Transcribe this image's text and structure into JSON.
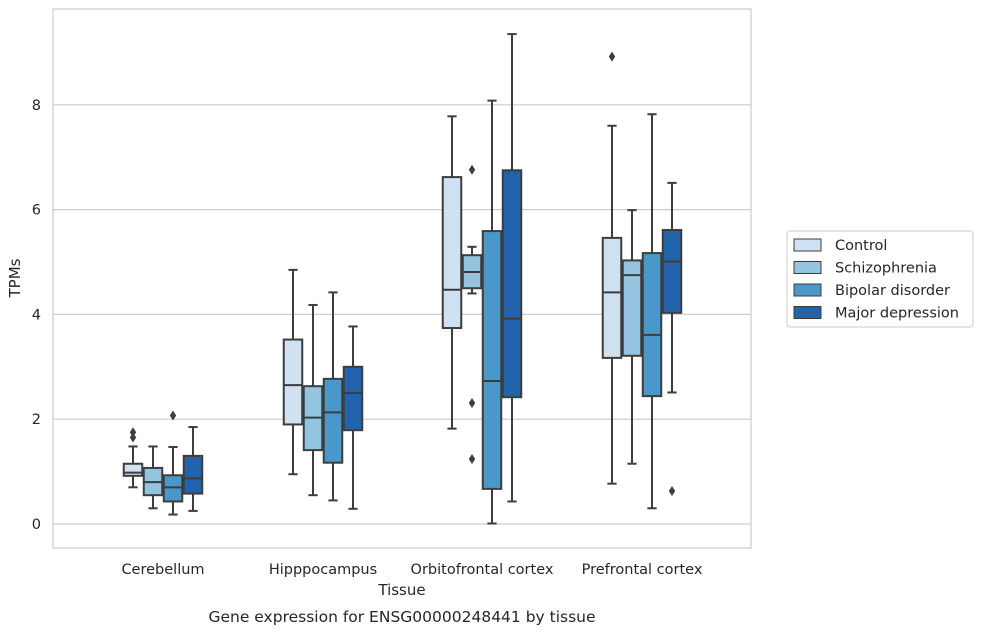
{
  "chart_data": {
    "type": "box",
    "caption": "Gene expression for ENSG00000248441 by tissue",
    "xlabel": "Tissue",
    "ylabel": "TPMs",
    "ylim": [
      -0.45,
      9.75
    ],
    "yticks": [
      0,
      2,
      4,
      6,
      8
    ],
    "grid": true,
    "legend_position": "right",
    "categories": [
      "Cerebellum",
      "Hipppocampus",
      "Orbitofrontal cortex",
      "Prefrontal cortex"
    ],
    "series": [
      {
        "name": "Control",
        "color": "#d0e1f2",
        "boxes": [
          {
            "whislo": 0.7,
            "q1": 0.92,
            "med": 0.98,
            "q3": 1.15,
            "whishi": 1.48,
            "fliers": [
              1.65,
              1.75
            ]
          },
          {
            "whislo": 0.95,
            "q1": 1.9,
            "med": 2.65,
            "q3": 3.52,
            "whishi": 4.85,
            "fliers": []
          },
          {
            "whislo": 1.82,
            "q1": 3.74,
            "med": 4.47,
            "q3": 6.62,
            "whishi": 7.78,
            "fliers": []
          },
          {
            "whislo": 0.77,
            "q1": 3.17,
            "med": 4.42,
            "q3": 5.46,
            "whishi": 7.6,
            "fliers": [
              8.92
            ]
          }
        ]
      },
      {
        "name": "Schizophrenia",
        "color": "#94c4df",
        "boxes": [
          {
            "whislo": 0.3,
            "q1": 0.55,
            "med": 0.8,
            "q3": 1.07,
            "whishi": 1.48,
            "fliers": []
          },
          {
            "whislo": 0.55,
            "q1": 1.41,
            "med": 2.03,
            "q3": 2.63,
            "whishi": 4.18,
            "fliers": []
          },
          {
            "whislo": 4.4,
            "q1": 4.5,
            "med": 4.81,
            "q3": 5.13,
            "whishi": 5.29,
            "fliers": [
              6.76,
              2.31,
              1.24
            ]
          },
          {
            "whislo": 1.15,
            "q1": 3.21,
            "med": 4.75,
            "q3": 5.03,
            "whishi": 5.99,
            "fliers": []
          }
        ]
      },
      {
        "name": "Bipolar disorder",
        "color": "#4a98c9",
        "boxes": [
          {
            "whislo": 0.18,
            "q1": 0.43,
            "med": 0.7,
            "q3": 0.93,
            "whishi": 1.47,
            "fliers": [
              2.07
            ]
          },
          {
            "whislo": 0.45,
            "q1": 1.17,
            "med": 2.13,
            "q3": 2.77,
            "whishi": 4.42,
            "fliers": []
          },
          {
            "whislo": 0.01,
            "q1": 0.67,
            "med": 2.73,
            "q3": 5.59,
            "whishi": 8.08,
            "fliers": []
          },
          {
            "whislo": 0.3,
            "q1": 2.44,
            "med": 3.61,
            "q3": 5.17,
            "whishi": 7.82,
            "fliers": []
          }
        ]
      },
      {
        "name": "Major depression",
        "color": "#2164ab",
        "boxes": [
          {
            "whislo": 0.25,
            "q1": 0.58,
            "med": 0.87,
            "q3": 1.3,
            "whishi": 1.85,
            "fliers": []
          },
          {
            "whislo": 0.29,
            "q1": 1.79,
            "med": 2.5,
            "q3": 3.0,
            "whishi": 3.77,
            "fliers": []
          },
          {
            "whislo": 0.43,
            "q1": 2.42,
            "med": 3.92,
            "q3": 6.75,
            "whishi": 9.35,
            "fliers": []
          },
          {
            "whislo": 2.51,
            "q1": 4.03,
            "med": 5.01,
            "q3": 5.61,
            "whishi": 6.51,
            "fliers": [
              0.63
            ]
          }
        ]
      }
    ]
  }
}
